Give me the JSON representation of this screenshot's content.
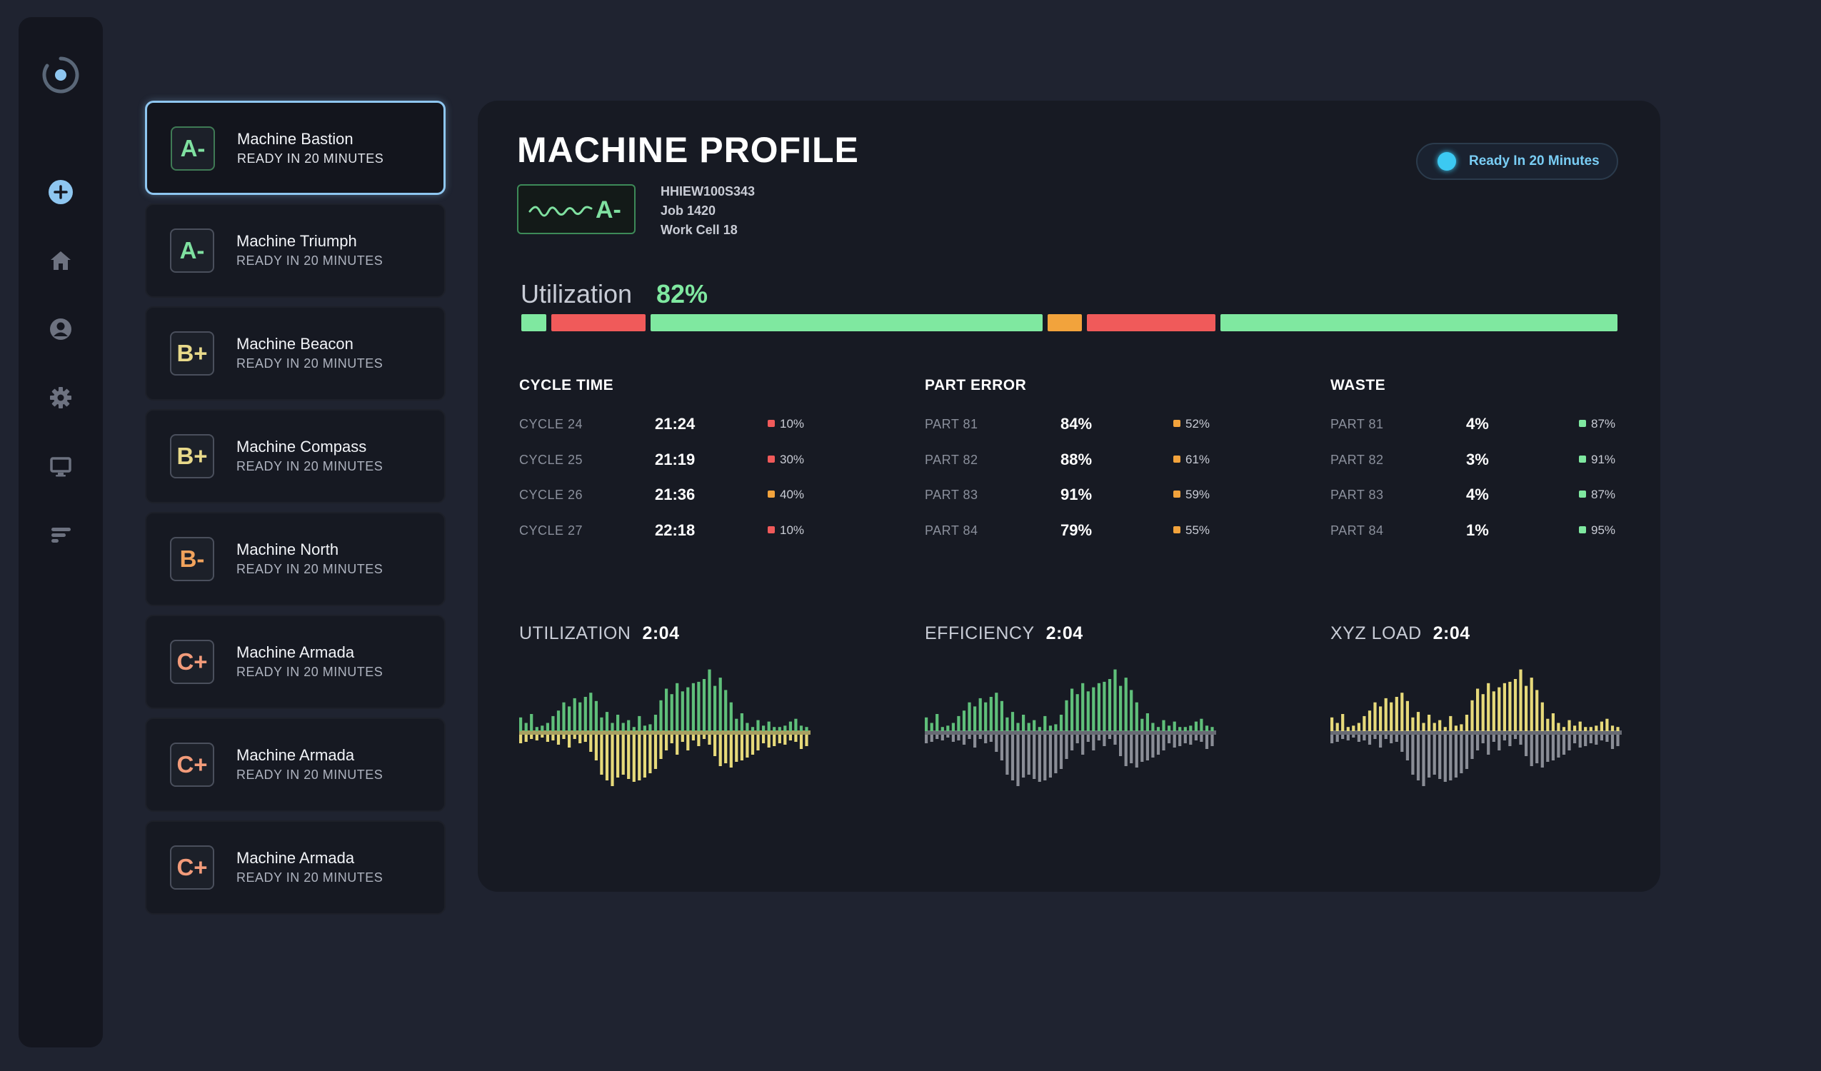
{
  "sidebar": {
    "icons": [
      "logo-icon",
      "add-icon",
      "home-icon",
      "user-icon",
      "gear-icon",
      "monitor-icon",
      "reports-icon"
    ]
  },
  "machines": [
    {
      "grade": "A-",
      "name": "Machine Bastion",
      "status": "READY IN 20 MINUTES",
      "color": "#7fe0a0",
      "active": true
    },
    {
      "grade": "A-",
      "name": "Machine Triumph",
      "status": "READY IN 20 MINUTES",
      "color": "#7fe0a0"
    },
    {
      "grade": "B+",
      "name": "Machine Beacon",
      "status": "READY IN 20 MINUTES",
      "color": "#e8d98a"
    },
    {
      "grade": "B+",
      "name": "Machine Compass",
      "status": "READY IN 20 MINUTES",
      "color": "#e8d98a"
    },
    {
      "grade": "B-",
      "name": "Machine North",
      "status": "READY IN 20 MINUTES",
      "color": "#f2a35c"
    },
    {
      "grade": "C+",
      "name": "Machine Armada",
      "status": "READY IN 20 MINUTES",
      "color": "#f29b7a"
    },
    {
      "grade": "C+",
      "name": "Machine Armada",
      "status": "READY IN 20 MINUTES",
      "color": "#f29b7a"
    },
    {
      "grade": "C+",
      "name": "Machine Armada",
      "status": "READY IN 20 MINUTES",
      "color": "#f29b7a"
    }
  ],
  "profile": {
    "title": "MACHINE PROFILE",
    "grade": "A-",
    "serial": "HHIEW100S343",
    "job": "Job 1420",
    "cell": "Work Cell 18",
    "status": "Ready In 20 Minutes",
    "utilization_label": "Utilization",
    "utilization_value": "82%",
    "utilization_segments": [
      {
        "share": 2.3,
        "color": "#7fe8a0"
      },
      {
        "share": 8.8,
        "color": "#f05a5a"
      },
      {
        "share": 36.6,
        "color": "#7fe8a0"
      },
      {
        "share": 3.2,
        "color": "#f2a33c"
      },
      {
        "share": 12.0,
        "color": "#f05a5a"
      },
      {
        "share": 37.1,
        "color": "#7fe8a0"
      }
    ]
  },
  "stats": [
    {
      "title": "CYCLE TIME",
      "rows": [
        {
          "label": "CYCLE 24",
          "value": "21:24",
          "pct": "10%",
          "color": "#f05a5a"
        },
        {
          "label": "CYCLE 25",
          "value": "21:19",
          "pct": "30%",
          "color": "#f05a5a"
        },
        {
          "label": "CYCLE 26",
          "value": "21:36",
          "pct": "40%",
          "color": "#f2a33c"
        },
        {
          "label": "CYCLE 27",
          "value": "22:18",
          "pct": "10%",
          "color": "#f05a5a"
        }
      ]
    },
    {
      "title": "PART ERROR",
      "rows": [
        {
          "label": "PART 81",
          "value": "84%",
          "pct": "52%",
          "color": "#f2a33c"
        },
        {
          "label": "PART 82",
          "value": "88%",
          "pct": "61%",
          "color": "#f2a33c"
        },
        {
          "label": "PART 83",
          "value": "91%",
          "pct": "59%",
          "color": "#f2a33c"
        },
        {
          "label": "PART 84",
          "value": "79%",
          "pct": "55%",
          "color": "#f2a33c"
        }
      ]
    },
    {
      "title": "WASTE",
      "rows": [
        {
          "label": "PART 81",
          "value": "4%",
          "pct": "87%",
          "color": "#7fe8a0"
        },
        {
          "label": "PART 82",
          "value": "3%",
          "pct": "91%",
          "color": "#7fe8a0"
        },
        {
          "label": "PART 83",
          "value": "4%",
          "pct": "87%",
          "color": "#7fe8a0"
        },
        {
          "label": "PART 84",
          "value": "1%",
          "pct": "95%",
          "color": "#7fe8a0"
        }
      ]
    }
  ],
  "charts": [
    {
      "title": "UTILIZATION",
      "value": "2:04",
      "top_color": "#5fbf7a",
      "bottom_color": "#e6d97a"
    },
    {
      "title": "EFFICIENCY",
      "value": "2:04",
      "top_color": "#5fbf7a",
      "bottom_color": "#8a8d96"
    },
    {
      "title": "XYZ LOAD",
      "value": "2:04",
      "top_color": "#e6d97a",
      "bottom_color": "#8a8d96"
    }
  ],
  "waveform": {
    "top": [
      0.2,
      0.12,
      0.25,
      0.06,
      0.08,
      0.12,
      0.22,
      0.3,
      0.42,
      0.36,
      0.48,
      0.42,
      0.5,
      0.56,
      0.44,
      0.2,
      0.28,
      0.12,
      0.24,
      0.12,
      0.16,
      0.06,
      0.22,
      0.08,
      0.1,
      0.24,
      0.45,
      0.62,
      0.54,
      0.7,
      0.58,
      0.64,
      0.7,
      0.72,
      0.76,
      0.9,
      0.66,
      0.78,
      0.6,
      0.42,
      0.18,
      0.26,
      0.12,
      0.06,
      0.16,
      0.08,
      0.14,
      0.06,
      0.06,
      0.08,
      0.14,
      0.18,
      0.08,
      0.06
    ],
    "bottom": [
      0.12,
      0.1,
      0.06,
      0.08,
      0.04,
      0.1,
      0.08,
      0.14,
      0.06,
      0.18,
      0.06,
      0.12,
      0.1,
      0.24,
      0.36,
      0.56,
      0.64,
      0.72,
      0.6,
      0.56,
      0.62,
      0.66,
      0.64,
      0.6,
      0.54,
      0.48,
      0.34,
      0.22,
      0.12,
      0.28,
      0.1,
      0.22,
      0.08,
      0.16,
      0.06,
      0.14,
      0.3,
      0.44,
      0.4,
      0.46,
      0.38,
      0.36,
      0.32,
      0.28,
      0.22,
      0.12,
      0.18,
      0.16,
      0.12,
      0.14,
      0.08,
      0.1,
      0.2,
      0.16
    ]
  }
}
